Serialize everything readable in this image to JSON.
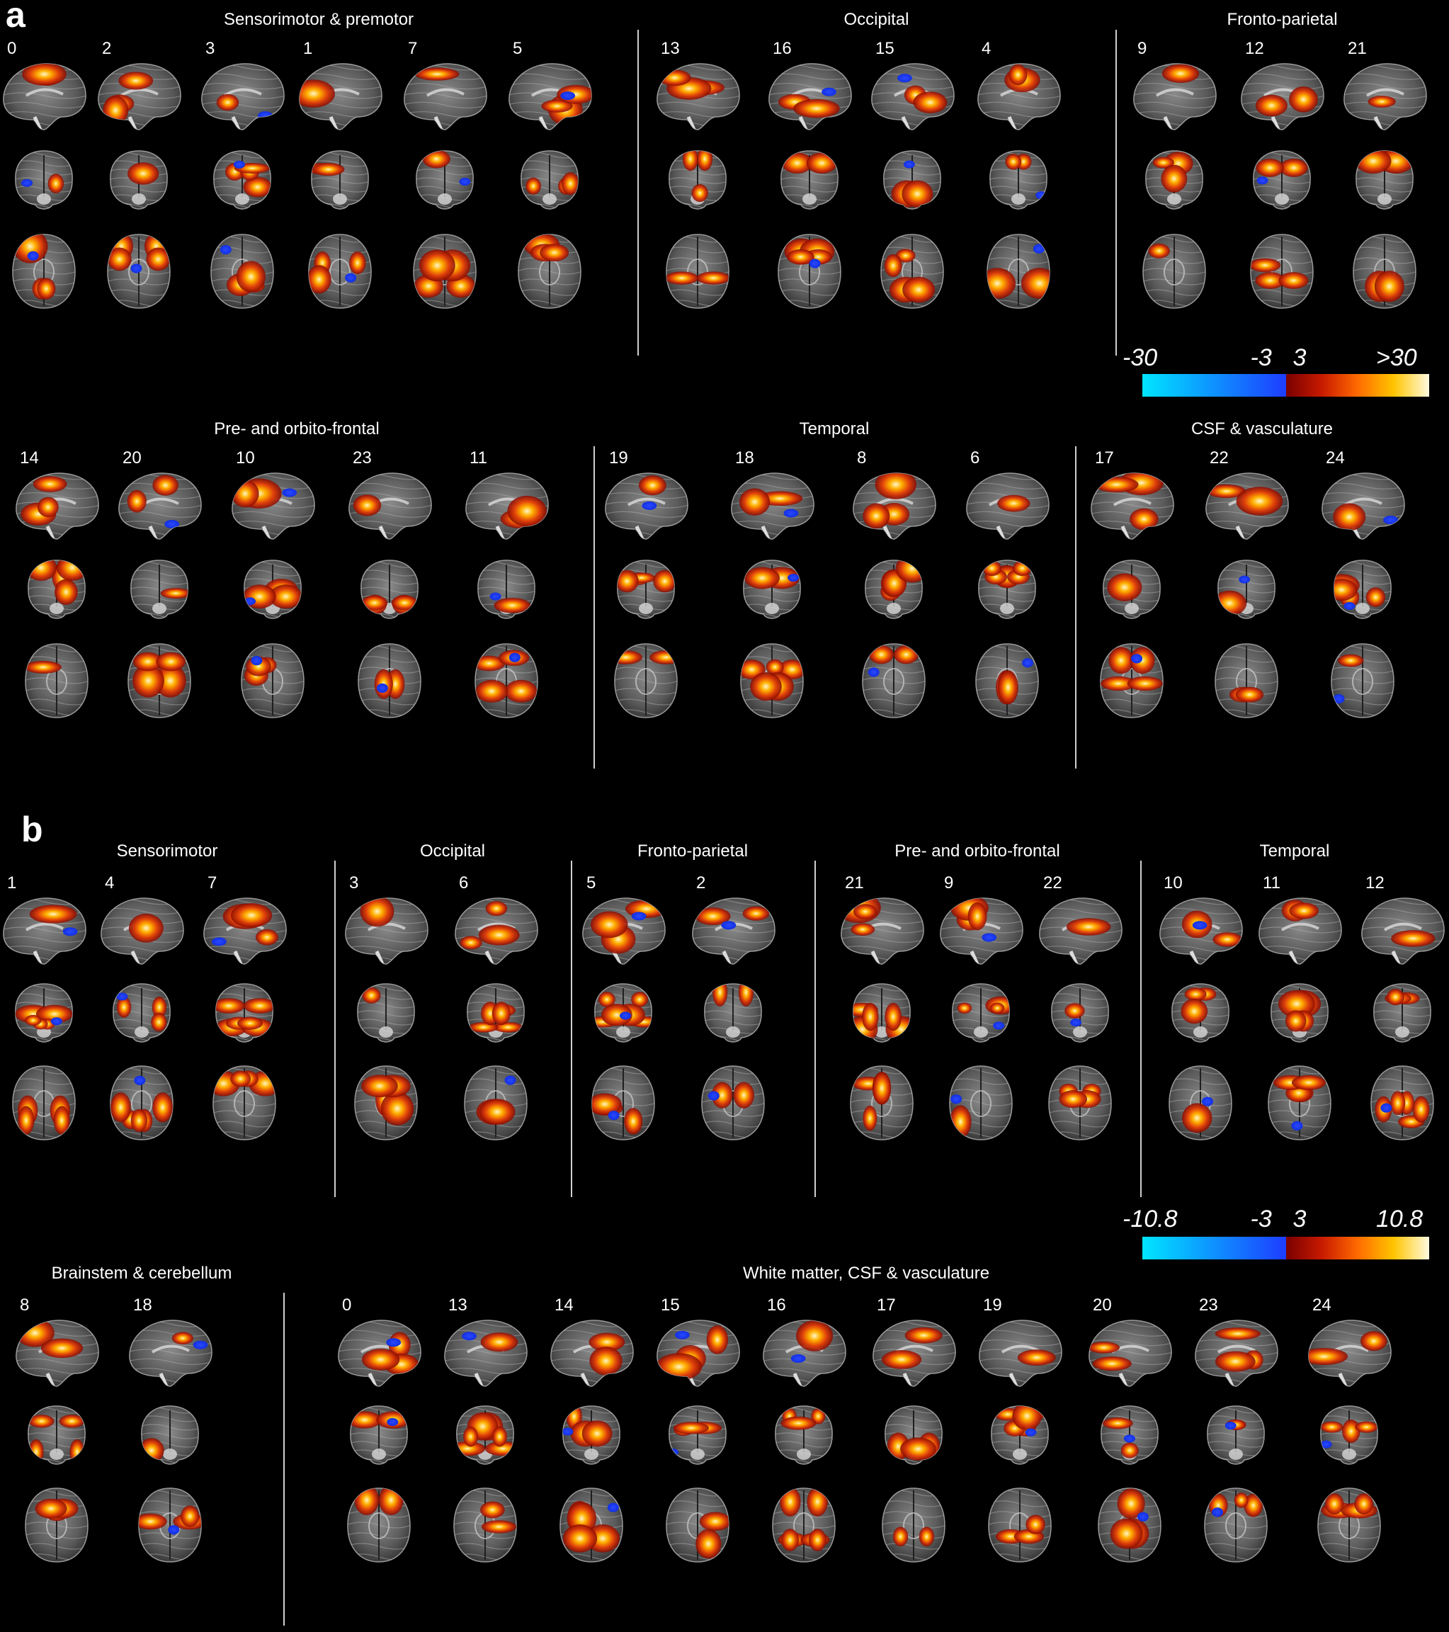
{
  "panels": [
    {
      "letter": "a",
      "groups": [
        {
          "title": "Sensorimotor & premotor",
          "components": [
            "0",
            "2",
            "3",
            "1",
            "7",
            "5"
          ]
        },
        {
          "title": "Occipital",
          "components": [
            "13",
            "16",
            "15",
            "4"
          ]
        },
        {
          "title": "Fronto-parietal",
          "components": [
            "9",
            "12",
            "21"
          ]
        },
        {
          "title": "Pre- and orbito-frontal",
          "components": [
            "14",
            "20",
            "10",
            "23",
            "11"
          ]
        },
        {
          "title": "Temporal",
          "components": [
            "19",
            "18",
            "8",
            "6"
          ]
        },
        {
          "title": "CSF & vasculature",
          "components": [
            "17",
            "22",
            "24"
          ]
        }
      ],
      "colorbar": {
        "neg_min": "-30",
        "neg_max": "-3",
        "pos_min": "3",
        "pos_max": ">30"
      }
    },
    {
      "letter": "b",
      "groups": [
        {
          "title": "Sensorimotor",
          "components": [
            "1",
            "4",
            "7"
          ]
        },
        {
          "title": "Occipital",
          "components": [
            "3",
            "6"
          ]
        },
        {
          "title": "Fronto-parietal",
          "components": [
            "5",
            "2"
          ]
        },
        {
          "title": "Pre- and orbito-frontal",
          "components": [
            "21",
            "9",
            "22"
          ]
        },
        {
          "title": "Temporal",
          "components": [
            "10",
            "11",
            "12"
          ]
        },
        {
          "title": "Brainstem & cerebellum",
          "components": [
            "8",
            "18"
          ]
        },
        {
          "title": "White matter, CSF & vasculature",
          "components": [
            "0",
            "13",
            "14",
            "15",
            "16",
            "17",
            "19",
            "20",
            "23",
            "24"
          ]
        }
      ],
      "colorbar": {
        "neg_min": "-10.8",
        "neg_max": "-3",
        "pos_min": "3",
        "pos_max": "10.8"
      }
    }
  ],
  "colors": {
    "negative_scale": [
      "#00e5ff",
      "#1d3dff"
    ],
    "positive_scale": [
      "#7a0000",
      "#c81a00",
      "#ff6a00",
      "#ffc400",
      "#fffbe0"
    ],
    "background": "#000000"
  }
}
